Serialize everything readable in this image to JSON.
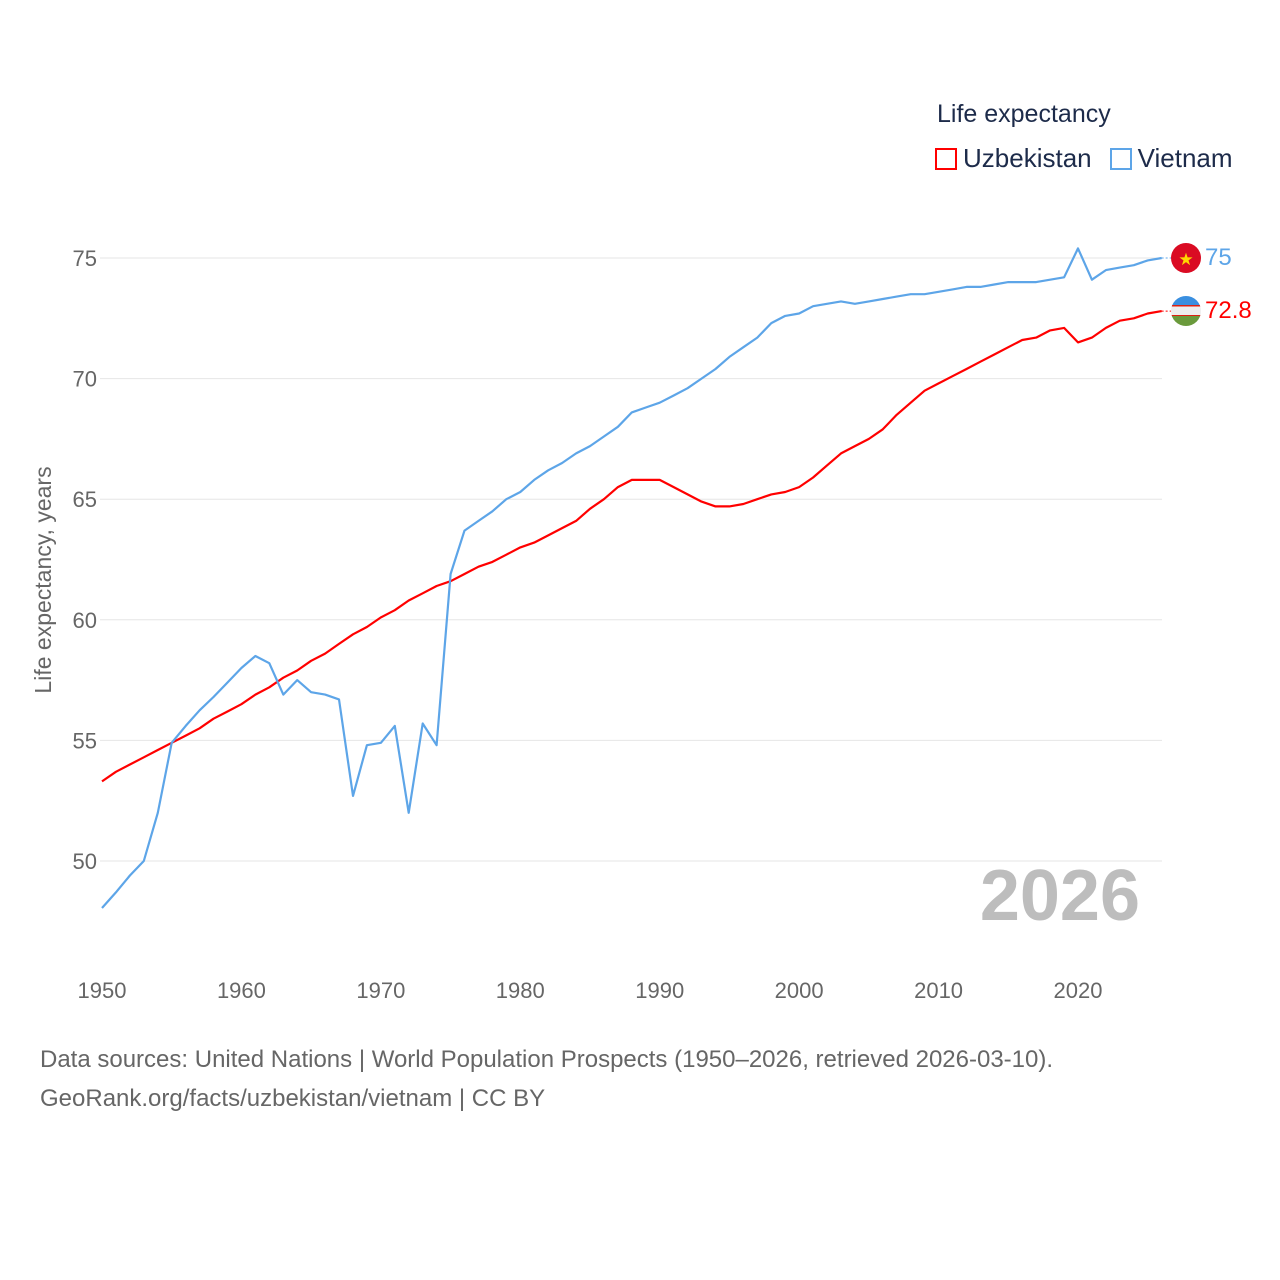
{
  "chart_data": {
    "type": "line",
    "title": "",
    "xlabel": "",
    "ylabel": "Life expectancy, years",
    "legend_title": "Life expectancy",
    "legend_position": "top-right",
    "xlim": [
      1950,
      2026
    ],
    "ylim": [
      48,
      75
    ],
    "x_ticks": [
      1950,
      1960,
      1970,
      1980,
      1990,
      2000,
      2010,
      2020
    ],
    "y_ticks": [
      50,
      55,
      60,
      65,
      70,
      75
    ],
    "grid": true,
    "year_watermark": "2026",
    "x_start": 1950,
    "series": [
      {
        "name": "Uzbekistan",
        "color": "#ff0000",
        "end_label": "72.8",
        "values": [
          53.3,
          53.7,
          54.0,
          54.3,
          54.6,
          54.9,
          55.2,
          55.5,
          55.9,
          56.2,
          56.5,
          56.9,
          57.2,
          57.6,
          57.9,
          58.3,
          58.6,
          59.0,
          59.4,
          59.7,
          60.1,
          60.4,
          60.8,
          61.1,
          61.4,
          61.6,
          61.9,
          62.2,
          62.4,
          62.7,
          63.0,
          63.2,
          63.5,
          63.8,
          64.1,
          64.6,
          65.0,
          65.5,
          65.8,
          65.8,
          65.8,
          65.5,
          65.2,
          64.9,
          64.7,
          64.7,
          64.8,
          65.0,
          65.2,
          65.3,
          65.5,
          65.9,
          66.4,
          66.9,
          67.2,
          67.5,
          67.9,
          68.5,
          69.0,
          69.5,
          69.8,
          70.1,
          70.4,
          70.7,
          71.0,
          71.3,
          71.6,
          71.7,
          72.0,
          72.1,
          71.5,
          71.7,
          72.1,
          72.4,
          72.5,
          72.7,
          72.8
        ]
      },
      {
        "name": "Vietnam",
        "color": "#5da5e8",
        "end_label": "75",
        "values": [
          48.05,
          48.7,
          49.4,
          50.0,
          52.0,
          54.9,
          55.6,
          56.25,
          56.8,
          57.4,
          58.0,
          58.5,
          58.2,
          56.9,
          57.5,
          57.0,
          56.9,
          56.7,
          52.7,
          54.8,
          54.9,
          55.6,
          52.0,
          55.7,
          54.8,
          61.9,
          63.7,
          64.1,
          64.5,
          65.0,
          65.3,
          65.8,
          66.2,
          66.5,
          66.9,
          67.2,
          67.6,
          68.0,
          68.6,
          68.8,
          69.0,
          69.3,
          69.6,
          70.0,
          70.4,
          70.9,
          71.3,
          71.7,
          72.3,
          72.6,
          72.7,
          73.0,
          73.1,
          73.2,
          73.1,
          73.2,
          73.3,
          73.4,
          73.5,
          73.5,
          73.6,
          73.7,
          73.8,
          73.8,
          73.9,
          74.0,
          74.0,
          74.0,
          74.1,
          74.2,
          75.4,
          74.1,
          74.5,
          74.6,
          74.7,
          74.9,
          75.0
        ]
      }
    ]
  },
  "footer": {
    "line1": "Data sources: United Nations | World Population Prospects (1950–2026, retrieved 2026-03-10).",
    "line2": "GeoRank.org/facts/uzbekistan/vietnam | CC BY"
  }
}
